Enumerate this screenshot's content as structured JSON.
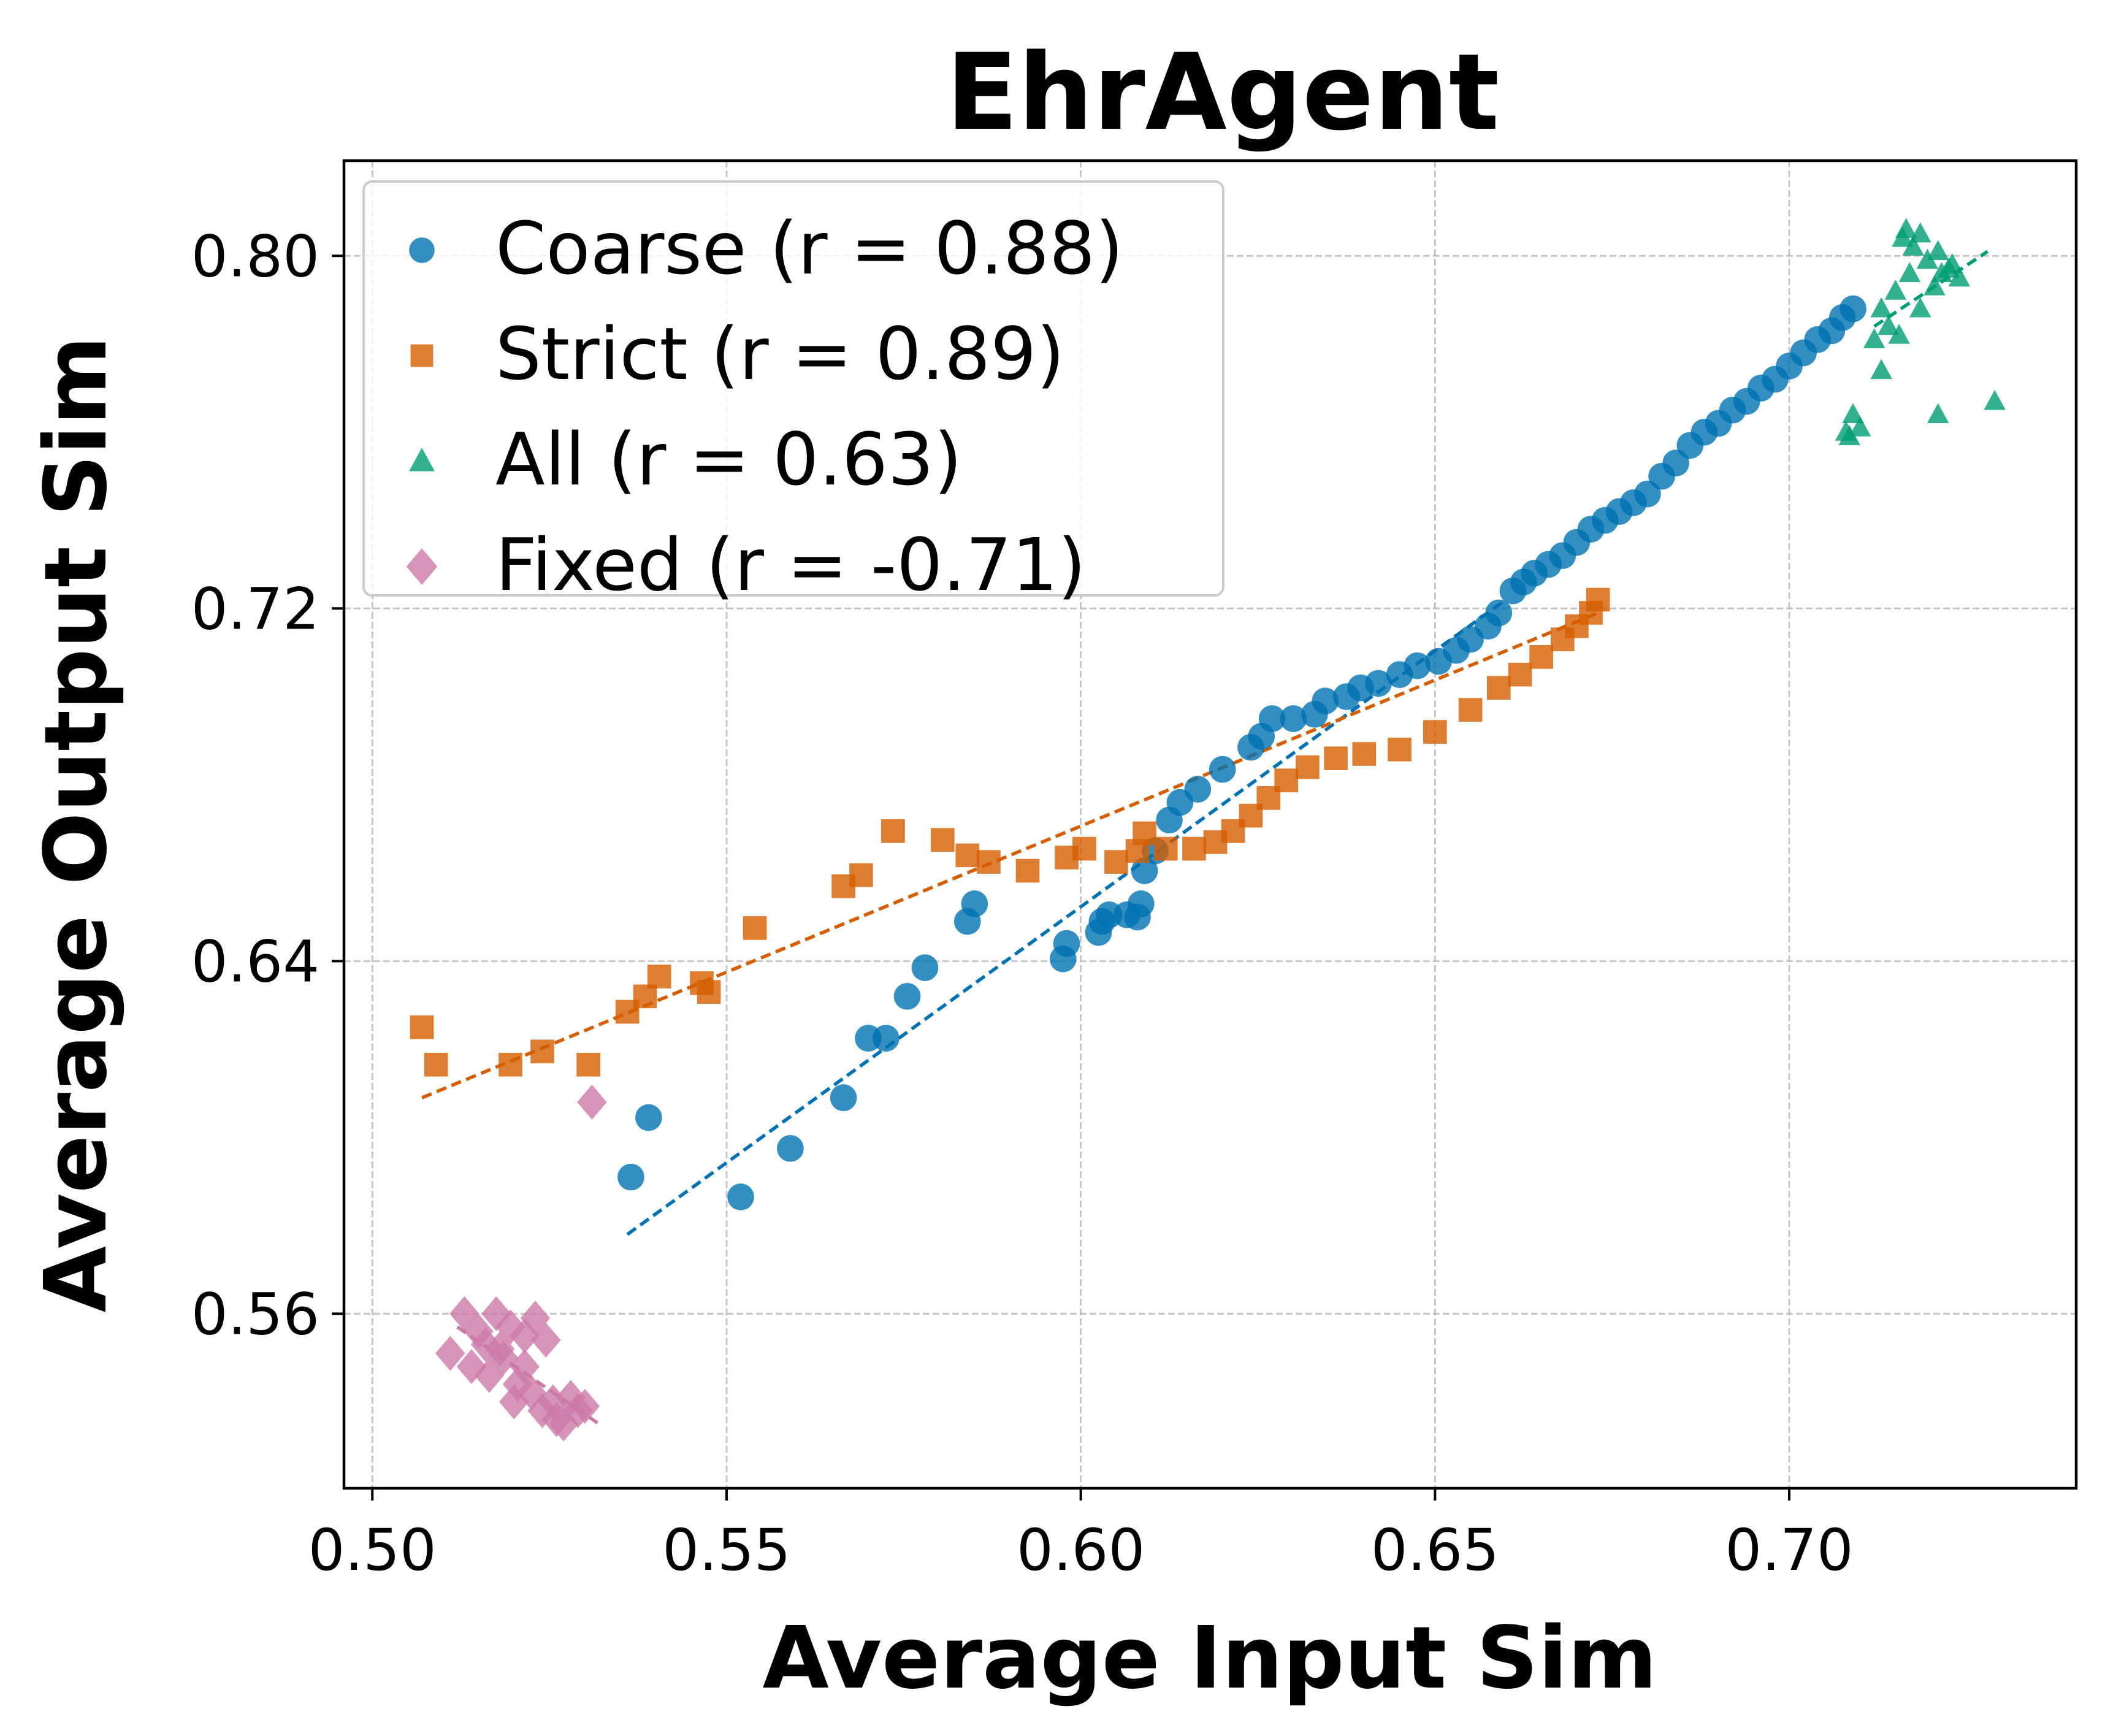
{
  "chart_data": {
    "type": "scatter",
    "title": "EhrAgent",
    "xlabel": "Average Input Sim",
    "ylabel": "Average Output Sim",
    "xlim": [
      0.496,
      0.7405
    ],
    "ylim": [
      0.5204,
      0.8216
    ],
    "xticks": [
      0.5,
      0.55,
      0.6,
      0.65,
      0.7
    ],
    "xtick_labels": [
      "0.50",
      "0.55",
      "0.60",
      "0.65",
      "0.70"
    ],
    "yticks": [
      0.56,
      0.64,
      0.72,
      0.8
    ],
    "ytick_labels": [
      "0.56",
      "0.64",
      "0.72",
      "0.80"
    ],
    "grid": true,
    "legend_position": "top-left",
    "series": [
      {
        "name": "Coarse (r = 0.88)",
        "color": "#0072b2",
        "marker": "circle",
        "trend": [
          [
            0.536,
            0.578
          ],
          [
            0.66,
            0.722
          ]
        ],
        "points": [
          [
            0.5365,
            0.591
          ],
          [
            0.539,
            0.6045
          ],
          [
            0.552,
            0.5865
          ],
          [
            0.559,
            0.5975
          ],
          [
            0.5665,
            0.609
          ],
          [
            0.57,
            0.6225
          ],
          [
            0.5725,
            0.6225
          ],
          [
            0.5755,
            0.632
          ],
          [
            0.578,
            0.6385
          ],
          [
            0.584,
            0.649
          ],
          [
            0.585,
            0.653
          ],
          [
            0.5975,
            0.6405
          ],
          [
            0.598,
            0.644
          ],
          [
            0.6025,
            0.6465
          ],
          [
            0.603,
            0.649
          ],
          [
            0.604,
            0.6505
          ],
          [
            0.6065,
            0.6505
          ],
          [
            0.608,
            0.65
          ],
          [
            0.6085,
            0.653
          ],
          [
            0.609,
            0.6605
          ],
          [
            0.6105,
            0.665
          ],
          [
            0.6125,
            0.672
          ],
          [
            0.614,
            0.676
          ],
          [
            0.6165,
            0.679
          ],
          [
            0.62,
            0.6835
          ],
          [
            0.624,
            0.6885
          ],
          [
            0.6255,
            0.691
          ],
          [
            0.627,
            0.695
          ],
          [
            0.63,
            0.695
          ],
          [
            0.633,
            0.696
          ],
          [
            0.6345,
            0.699
          ],
          [
            0.6375,
            0.7
          ],
          [
            0.6395,
            0.702
          ],
          [
            0.642,
            0.703
          ],
          [
            0.645,
            0.705
          ],
          [
            0.6475,
            0.707
          ],
          [
            0.6505,
            0.708
          ],
          [
            0.653,
            0.7105
          ],
          [
            0.655,
            0.713
          ],
          [
            0.6575,
            0.716
          ],
          [
            0.659,
            0.719
          ],
          [
            0.661,
            0.724
          ],
          [
            0.6625,
            0.726
          ],
          [
            0.664,
            0.728
          ],
          [
            0.666,
            0.73
          ],
          [
            0.668,
            0.732
          ],
          [
            0.67,
            0.735
          ],
          [
            0.672,
            0.738
          ],
          [
            0.674,
            0.74
          ],
          [
            0.676,
            0.742
          ],
          [
            0.678,
            0.744
          ],
          [
            0.68,
            0.746
          ],
          [
            0.682,
            0.75
          ],
          [
            0.684,
            0.753
          ],
          [
            0.686,
            0.757
          ],
          [
            0.688,
            0.76
          ],
          [
            0.69,
            0.762
          ],
          [
            0.692,
            0.765
          ],
          [
            0.694,
            0.767
          ],
          [
            0.696,
            0.77
          ],
          [
            0.698,
            0.772
          ],
          [
            0.7,
            0.775
          ],
          [
            0.702,
            0.778
          ],
          [
            0.704,
            0.781
          ],
          [
            0.706,
            0.783
          ],
          [
            0.7075,
            0.786
          ],
          [
            0.709,
            0.788
          ]
        ]
      },
      {
        "name": "Strict (r = 0.89)",
        "color": "#d55e00",
        "marker": "square",
        "trend": [
          [
            0.507,
            0.609
          ],
          [
            0.673,
            0.719
          ]
        ],
        "points": [
          [
            0.507,
            0.625
          ],
          [
            0.509,
            0.6165
          ],
          [
            0.5195,
            0.6165
          ],
          [
            0.524,
            0.6195
          ],
          [
            0.5305,
            0.6165
          ],
          [
            0.536,
            0.6285
          ],
          [
            0.5385,
            0.632
          ],
          [
            0.5405,
            0.6365
          ],
          [
            0.5465,
            0.635
          ],
          [
            0.5475,
            0.633
          ],
          [
            0.554,
            0.6475
          ],
          [
            0.5665,
            0.657
          ],
          [
            0.569,
            0.6595
          ],
          [
            0.5735,
            0.6695
          ],
          [
            0.5805,
            0.6675
          ],
          [
            0.584,
            0.664
          ],
          [
            0.587,
            0.6625
          ],
          [
            0.5925,
            0.6605
          ],
          [
            0.598,
            0.6635
          ],
          [
            0.6005,
            0.6655
          ],
          [
            0.605,
            0.6625
          ],
          [
            0.608,
            0.665
          ],
          [
            0.609,
            0.669
          ],
          [
            0.612,
            0.6655
          ],
          [
            0.616,
            0.6655
          ],
          [
            0.619,
            0.667
          ],
          [
            0.6215,
            0.6695
          ],
          [
            0.624,
            0.673
          ],
          [
            0.6265,
            0.677
          ],
          [
            0.629,
            0.681
          ],
          [
            0.632,
            0.684
          ],
          [
            0.636,
            0.686
          ],
          [
            0.64,
            0.687
          ],
          [
            0.645,
            0.688
          ],
          [
            0.65,
            0.692
          ],
          [
            0.655,
            0.697
          ],
          [
            0.659,
            0.702
          ],
          [
            0.662,
            0.705
          ],
          [
            0.665,
            0.709
          ],
          [
            0.668,
            0.713
          ],
          [
            0.67,
            0.716
          ],
          [
            0.672,
            0.719
          ],
          [
            0.673,
            0.722
          ]
        ]
      },
      {
        "name": "All (r = 0.63)",
        "color": "#009e73",
        "marker": "triangle",
        "trend": [
          [
            0.712,
            0.784
          ],
          [
            0.728,
            0.801
          ]
        ],
        "points": [
          [
            0.716,
            0.804
          ],
          [
            0.7165,
            0.806
          ],
          [
            0.7175,
            0.802
          ],
          [
            0.7185,
            0.805
          ],
          [
            0.7195,
            0.799
          ],
          [
            0.7205,
            0.793
          ],
          [
            0.721,
            0.801
          ],
          [
            0.7215,
            0.796
          ],
          [
            0.7225,
            0.797
          ],
          [
            0.723,
            0.798
          ],
          [
            0.724,
            0.795
          ],
          [
            0.717,
            0.796
          ],
          [
            0.715,
            0.792
          ],
          [
            0.713,
            0.788
          ],
          [
            0.714,
            0.784
          ],
          [
            0.7155,
            0.782
          ],
          [
            0.7185,
            0.788
          ],
          [
            0.712,
            0.781
          ],
          [
            0.713,
            0.774
          ],
          [
            0.709,
            0.764
          ],
          [
            0.71,
            0.761
          ],
          [
            0.7085,
            0.759
          ],
          [
            0.708,
            0.76
          ],
          [
            0.721,
            0.764
          ],
          [
            0.729,
            0.767
          ]
        ]
      },
      {
        "name": "Fixed (r = -0.71)",
        "color": "#cc79a7",
        "marker": "diamond",
        "trend": [
          [
            0.512,
            0.557
          ],
          [
            0.532,
            0.535
          ]
        ],
        "points": [
          [
            0.531,
            0.608
          ],
          [
            0.513,
            0.56
          ],
          [
            0.5175,
            0.56
          ],
          [
            0.523,
            0.559
          ],
          [
            0.515,
            0.556
          ],
          [
            0.5195,
            0.557
          ],
          [
            0.5215,
            0.555
          ],
          [
            0.5245,
            0.554
          ],
          [
            0.511,
            0.551
          ],
          [
            0.514,
            0.548
          ],
          [
            0.5165,
            0.546
          ],
          [
            0.5185,
            0.55
          ],
          [
            0.5205,
            0.544
          ],
          [
            0.5225,
            0.542
          ],
          [
            0.5255,
            0.54
          ],
          [
            0.528,
            0.541
          ],
          [
            0.53,
            0.539
          ],
          [
            0.524,
            0.538
          ],
          [
            0.526,
            0.536
          ],
          [
            0.52,
            0.54
          ],
          [
            0.527,
            0.535
          ],
          [
            0.518,
            0.552
          ],
          [
            0.516,
            0.553
          ],
          [
            0.5215,
            0.548
          ],
          [
            0.529,
            0.538
          ]
        ]
      }
    ]
  }
}
